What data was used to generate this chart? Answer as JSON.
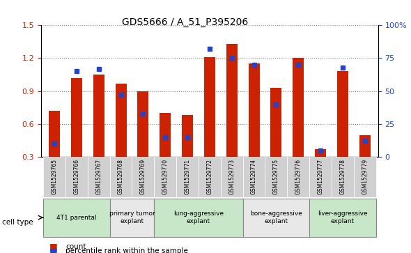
{
  "title": "GDS5666 / A_51_P395206",
  "samples": [
    "GSM1529765",
    "GSM1529766",
    "GSM1529767",
    "GSM1529768",
    "GSM1529769",
    "GSM1529770",
    "GSM1529771",
    "GSM1529772",
    "GSM1529773",
    "GSM1529774",
    "GSM1529775",
    "GSM1529776",
    "GSM1529777",
    "GSM1529778",
    "GSM1529779"
  ],
  "counts": [
    0.72,
    1.02,
    1.05,
    0.97,
    0.9,
    0.7,
    0.68,
    1.21,
    1.33,
    1.15,
    0.93,
    1.2,
    0.37,
    1.08,
    0.5
  ],
  "percentiles": [
    10,
    65,
    67,
    47,
    33,
    15,
    15,
    82,
    75,
    70,
    40,
    70,
    5,
    68,
    12
  ],
  "ylim_left": [
    0.3,
    1.5
  ],
  "ylim_right": [
    0,
    100
  ],
  "yticks_left": [
    0.3,
    0.6,
    0.9,
    1.2,
    1.5
  ],
  "yticks_right": [
    0,
    25,
    50,
    75,
    100
  ],
  "ytick_labels_left": [
    "0.3",
    "0.6",
    "0.9",
    "1.2",
    "1.5"
  ],
  "ytick_labels_right": [
    "0",
    "25",
    "50",
    "75",
    "100%"
  ],
  "bar_color": "#cc2200",
  "marker_color": "#2244cc",
  "groups": [
    {
      "label": "4T1 parental",
      "indices": [
        0,
        1,
        2
      ],
      "color": "#c8e6c8"
    },
    {
      "label": "primary tumor\nexplant",
      "indices": [
        3,
        4
      ],
      "color": "#e8e8e8"
    },
    {
      "label": "lung-aggressive\nexplant",
      "indices": [
        5,
        6,
        7,
        8
      ],
      "color": "#c8e6c8"
    },
    {
      "label": "bone-aggressive\nexplant",
      "indices": [
        9,
        10,
        11
      ],
      "color": "#e8e8e8"
    },
    {
      "label": "liver-aggressive\nexplant",
      "indices": [
        12,
        13,
        14
      ],
      "color": "#c8e6c8"
    }
  ],
  "cell_type_label": "cell type",
  "legend_count_label": "count",
  "legend_percentile_label": "percentile rank within the sample",
  "grid_color": "#888888",
  "background_color": "#ffffff",
  "plot_bg_color": "#ffffff"
}
